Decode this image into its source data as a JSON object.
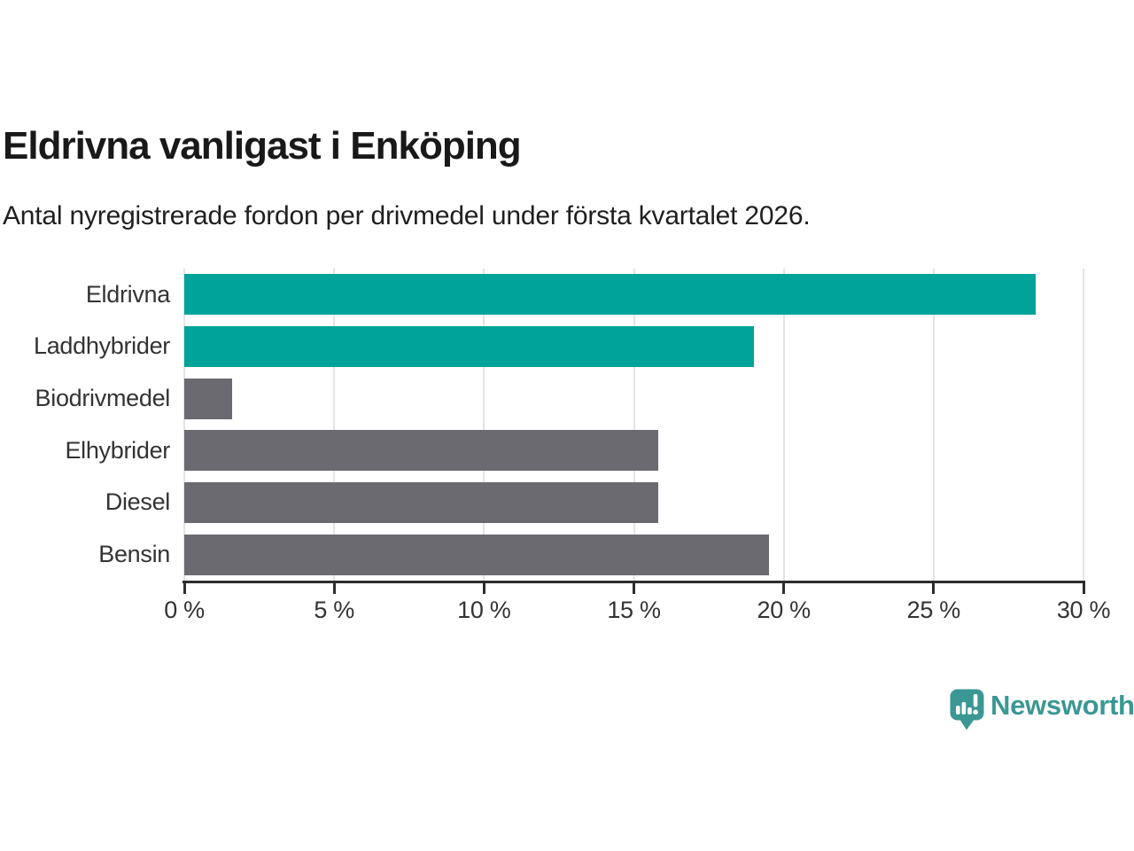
{
  "header": {
    "title": "Eldrivna vanligast i Enköping",
    "subtitle": "Antal nyregistrerade fordon per drivmedel under första kvartalet 2026."
  },
  "chart_data": {
    "type": "bar",
    "orientation": "horizontal",
    "title": "Eldrivna vanligast i Enköping",
    "subtitle": "Antal nyregistrerade fordon per drivmedel under första kvartalet 2026.",
    "categories": [
      "Eldrivna",
      "Laddhybrider",
      "Biodrivmedel",
      "Elhybrider",
      "Diesel",
      "Bensin"
    ],
    "values": [
      28.4,
      19.0,
      1.6,
      15.8,
      15.8,
      19.5
    ],
    "unit": "%",
    "bar_colors": [
      "#00a399",
      "#00a399",
      "#6b6a70",
      "#6b6a70",
      "#6b6a70",
      "#6b6a70"
    ],
    "highlight_color": "#00a399",
    "default_color": "#6b6a70",
    "xlabel": "",
    "ylabel": "",
    "x_axis": {
      "min": 0,
      "max": 30,
      "tick_step": 5,
      "tick_labels": [
        "0 %",
        "5 %",
        "10 %",
        "15 %",
        "20 %",
        "25 %",
        "30 %"
      ]
    },
    "grid": true,
    "gridline_color": "#e4e4e6",
    "axis_color": "#2d2d2d",
    "legend": "none"
  },
  "footer": {
    "brand": "Newsworthy",
    "brand_color": "#3b9794",
    "logo_icon": "newsworthy-speech-bubble-bar-chart-icon"
  }
}
